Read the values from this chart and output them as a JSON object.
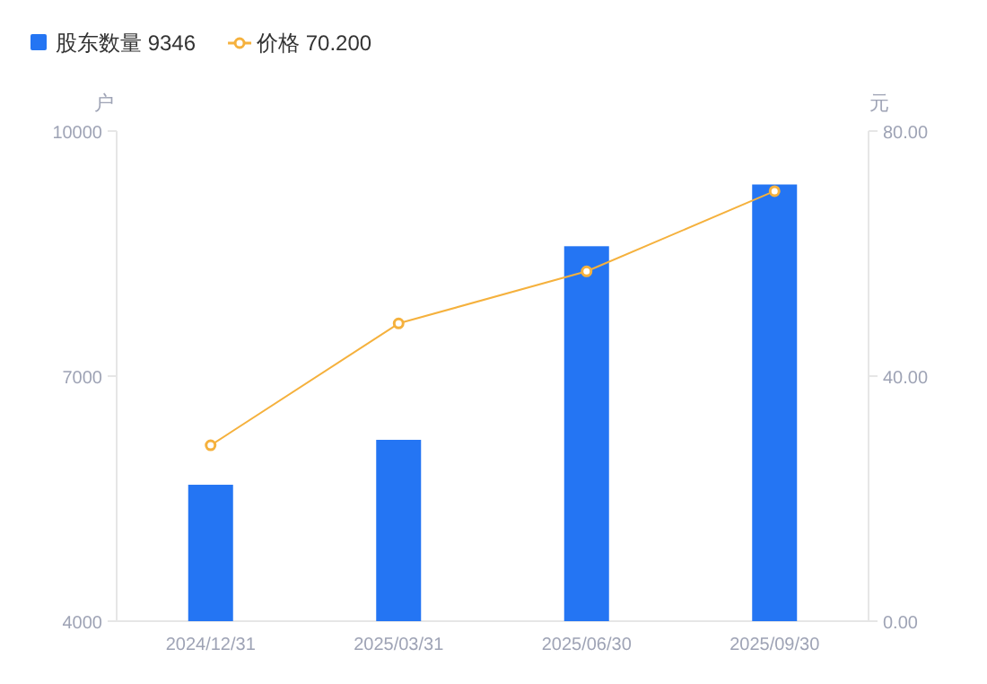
{
  "chart_data": {
    "type": "bar",
    "categories": [
      "2024/12/31",
      "2025/03/31",
      "2025/06/30",
      "2025/09/30"
    ],
    "series": [
      {
        "name": "股东数量 9346",
        "color": "#2475f3",
        "values": [
          5670,
          6220,
          8590,
          9346
        ]
      },
      {
        "name": "价格 70.200",
        "type": "line",
        "axis": "y2",
        "color": "#f5b13d",
        "values": [
          28.7,
          48.6,
          57.1,
          70.2
        ]
      }
    ],
    "ylabel": "户",
    "y2label": "元",
    "ylim": [
      4000,
      10000
    ],
    "yticks": [
      4000,
      7000,
      10000
    ],
    "y2lim": [
      0,
      80
    ],
    "y2ticks": [
      {
        "value": 0,
        "label": "0.00"
      },
      {
        "value": 40,
        "label": "40.00"
      },
      {
        "value": 80,
        "label": "80.00"
      }
    ],
    "legend": "top left",
    "marker": "circle",
    "line_style": "solid",
    "grid": false
  }
}
